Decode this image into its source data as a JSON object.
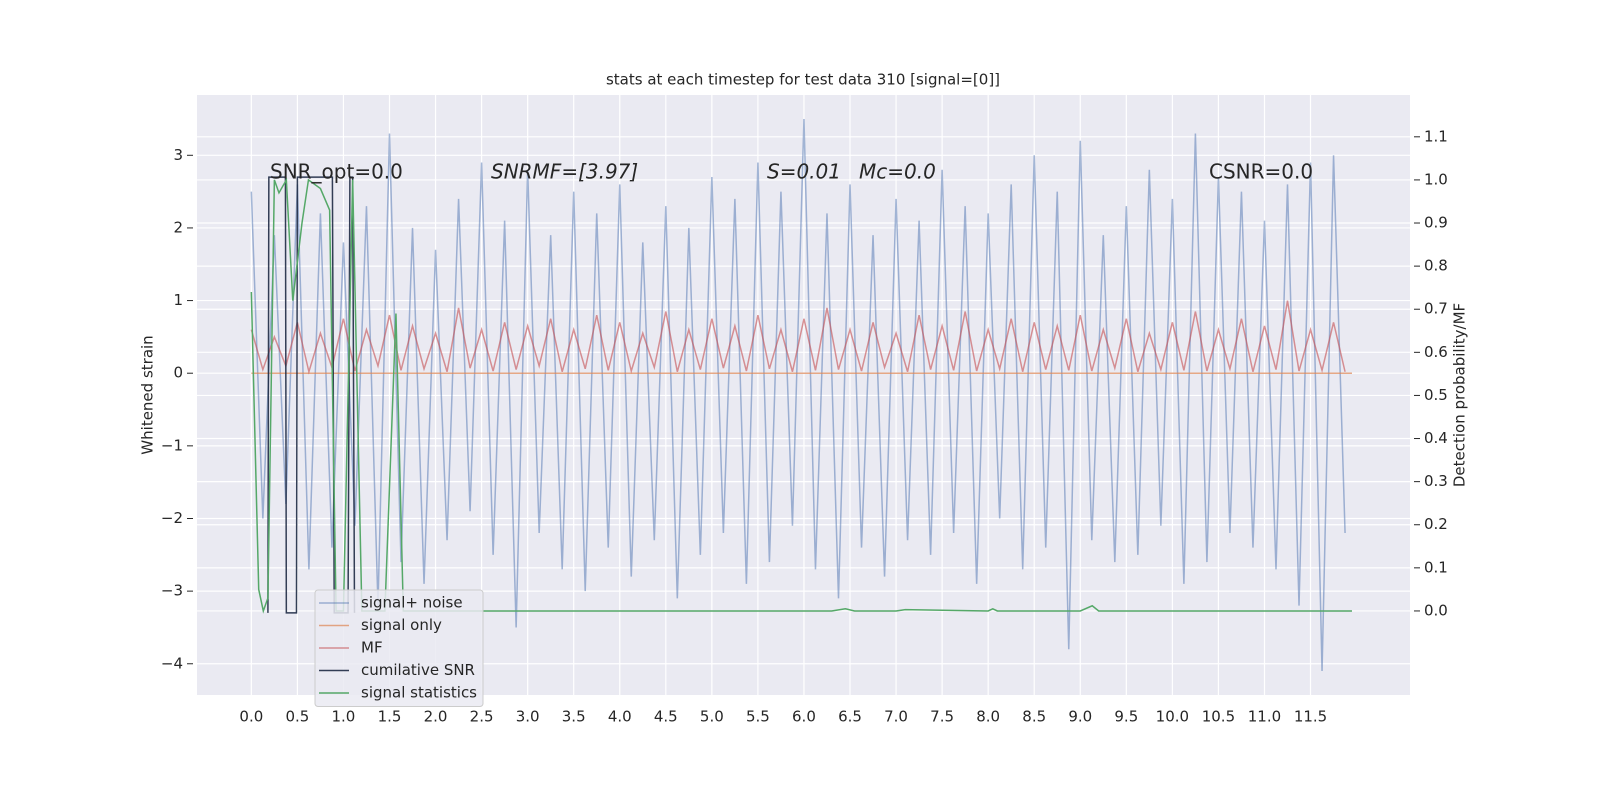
{
  "chart_data": {
    "type": "line",
    "title": "stats at each timestep for test data 310 [signal=[0]]",
    "ylabel": "Whitened strain",
    "y2label": "Detection probability/MF",
    "grid": true,
    "legend": "lower left",
    "annotations": [
      "SNR_opt=0.0",
      "SNRMF=[3.97]",
      "S=0.01",
      "Mc=0.0",
      "CSNR=0.0"
    ],
    "xlim": [
      -0.59,
      12.58
    ],
    "ylim": [
      -4.43,
      3.83
    ],
    "y2lim": [
      -0.195,
      1.197
    ],
    "xticks": [
      {
        "value": 0,
        "label": "0.0"
      },
      {
        "value": 0.5,
        "label": "0.5"
      },
      {
        "value": 1,
        "label": "1.0"
      },
      {
        "value": 1.5,
        "label": "1.5"
      },
      {
        "value": 2,
        "label": "2.0"
      },
      {
        "value": 2.5,
        "label": "2.5"
      },
      {
        "value": 3,
        "label": "3.0"
      },
      {
        "value": 3.5,
        "label": "3.5"
      },
      {
        "value": 4,
        "label": "4.0"
      },
      {
        "value": 4.5,
        "label": "4.5"
      },
      {
        "value": 5,
        "label": "5.0"
      },
      {
        "value": 5.5,
        "label": "5.5"
      },
      {
        "value": 6,
        "label": "6.0"
      },
      {
        "value": 6.5,
        "label": "6.5"
      },
      {
        "value": 7,
        "label": "7.0"
      },
      {
        "value": 7.5,
        "label": "7.5"
      },
      {
        "value": 8,
        "label": "8.0"
      },
      {
        "value": 8.5,
        "label": "8.5"
      },
      {
        "value": 9,
        "label": "9.0"
      },
      {
        "value": 9.5,
        "label": "9.5"
      },
      {
        "value": 10,
        "label": "10.0"
      },
      {
        "value": 10.5,
        "label": "10.5"
      },
      {
        "value": 11,
        "label": "11.0"
      },
      {
        "value": 11.5,
        "label": "11.5"
      }
    ],
    "yticks": [
      {
        "value": -4,
        "label": "−4"
      },
      {
        "value": -3,
        "label": "−3"
      },
      {
        "value": -2,
        "label": "−2"
      },
      {
        "value": -1,
        "label": "−1"
      },
      0,
      1,
      2,
      3
    ],
    "y2ticks": [
      {
        "value": 0,
        "label": "0.0"
      },
      {
        "value": 0.1,
        "label": "0.1"
      },
      {
        "value": 0.2,
        "label": "0.2"
      },
      {
        "value": 0.3,
        "label": "0.3"
      },
      {
        "value": 0.4,
        "label": "0.4"
      },
      {
        "value": 0.5,
        "label": "0.5"
      },
      {
        "value": 0.6,
        "label": "0.6"
      },
      {
        "value": 0.7,
        "label": "0.7"
      },
      {
        "value": 0.8,
        "label": "0.8"
      },
      {
        "value": 0.9,
        "label": "0.9"
      },
      {
        "value": 1.0,
        "label": "1.0"
      },
      {
        "value": 1.1,
        "label": "1.1"
      }
    ],
    "x": [
      0,
      0.125,
      0.25,
      0.375,
      0.5,
      0.625,
      0.75,
      0.875,
      1,
      1.125,
      1.25,
      1.375,
      1.5,
      1.625,
      1.75,
      1.875,
      2,
      2.125,
      2.25,
      2.375,
      2.5,
      2.625,
      2.75,
      2.875,
      3,
      3.125,
      3.25,
      3.375,
      3.5,
      3.625,
      3.75,
      3.875,
      4,
      4.125,
      4.25,
      4.375,
      4.5,
      4.625,
      4.75,
      4.875,
      5,
      5.125,
      5.25,
      5.375,
      5.5,
      5.625,
      5.75,
      5.875,
      6,
      6.125,
      6.25,
      6.375,
      6.5,
      6.625,
      6.75,
      6.875,
      7,
      7.125,
      7.25,
      7.375,
      7.5,
      7.625,
      7.75,
      7.875,
      8,
      8.125,
      8.25,
      8.375,
      8.5,
      8.625,
      8.75,
      8.875,
      9,
      9.125,
      9.25,
      9.375,
      9.5,
      9.625,
      9.75,
      9.875,
      10,
      10.125,
      10.25,
      10.375,
      10.5,
      10.625,
      10.75,
      10.875,
      11,
      11.125,
      11.25,
      11.375,
      11.5,
      11.625,
      11.75,
      11.875
    ],
    "series": [
      {
        "name": "signal+ noise",
        "color": "#4c72b0",
        "axis": "y",
        "values": [
          2.5,
          -2.0,
          1.9,
          -1.8,
          2.6,
          -2.7,
          2.2,
          -2.4,
          1.8,
          -2.1,
          2.3,
          -3.2,
          3.3,
          -2.6,
          2.0,
          -2.9,
          1.7,
          -2.3,
          2.4,
          -1.9,
          2.9,
          -2.5,
          2.1,
          -3.5,
          2.8,
          -2.2,
          1.9,
          -2.7,
          2.5,
          -3.0,
          2.2,
          -2.4,
          2.6,
          -2.8,
          1.8,
          -2.3,
          2.3,
          -3.1,
          2.0,
          -2.5,
          2.7,
          -2.2,
          2.4,
          -2.9,
          2.9,
          -2.6,
          2.5,
          -2.1,
          3.5,
          -2.7,
          2.2,
          -3.1,
          2.6,
          -2.4,
          1.9,
          -2.8,
          2.4,
          -2.3,
          2.1,
          -2.5,
          2.8,
          -2.2,
          2.3,
          -2.9,
          2.2,
          -2.0,
          2.6,
          -2.7,
          3.0,
          -2.4,
          2.5,
          -3.8,
          3.2,
          -2.3,
          1.9,
          -2.6,
          2.3,
          -2.5,
          2.8,
          -2.1,
          2.4,
          -2.9,
          3.3,
          -2.6,
          2.7,
          -2.2,
          2.5,
          -2.4,
          2.1,
          -2.7,
          2.6,
          -3.2,
          2.9,
          -4.1,
          3.0,
          -2.2
        ]
      },
      {
        "name": "signal only",
        "color": "#dd8452",
        "axis": "y",
        "x": [
          0,
          11.95
        ],
        "values": [
          0,
          0
        ]
      },
      {
        "name": "MF",
        "color": "#c44e52",
        "axis": "y",
        "values": [
          0.6,
          0.05,
          0.5,
          0.1,
          0.7,
          0.02,
          0.55,
          0.08,
          0.75,
          0.03,
          0.6,
          0.1,
          0.8,
          0.04,
          0.65,
          0.06,
          0.55,
          0.02,
          0.9,
          0.07,
          0.6,
          0.03,
          0.7,
          0.05,
          0.65,
          0.1,
          0.75,
          0.02,
          0.6,
          0.06,
          0.8,
          0.04,
          0.7,
          0.03,
          0.55,
          0.08,
          0.85,
          0.02,
          0.6,
          0.05,
          0.75,
          0.07,
          0.65,
          0.03,
          0.8,
          0.06,
          0.6,
          0.02,
          0.75,
          0.04,
          0.9,
          0.05,
          0.6,
          0.03,
          0.7,
          0.08,
          0.55,
          0.02,
          0.8,
          0.05,
          0.65,
          0.04,
          0.85,
          0.03,
          0.6,
          0.06,
          0.75,
          0.02,
          0.7,
          0.05,
          0.65,
          0.04,
          0.8,
          0.03,
          0.6,
          0.07,
          0.75,
          0.02,
          0.55,
          0.05,
          0.7,
          0.04,
          0.85,
          0.03,
          0.6,
          0.06,
          0.75,
          0.02,
          0.65,
          0.05,
          1.0,
          0.03,
          0.6,
          0.04,
          0.7,
          0.02
        ]
      },
      {
        "name": "cumilative SNR",
        "color": "#1e2a44",
        "axis": "y",
        "x": [
          0.18,
          0.19,
          0.37,
          0.38,
          0.49,
          0.5,
          0.88,
          0.9,
          1.05,
          1.07,
          1.1,
          1.12
        ],
        "values": [
          -3.3,
          2.7,
          2.7,
          -3.3,
          -3.3,
          2.7,
          2.7,
          -3.3,
          -3.3,
          2.7,
          2.7,
          -3.3
        ]
      },
      {
        "name": "signal statistics",
        "color": "#55a868",
        "axis": "y2",
        "x": [
          0,
          0.08,
          0.13,
          0.18,
          0.25,
          0.3,
          0.38,
          0.45,
          0.55,
          0.62,
          0.75,
          0.85,
          0.92,
          1.0,
          1.1,
          1.2,
          1.45,
          1.57,
          1.65,
          6.3,
          6.45,
          6.55,
          7.0,
          7.1,
          8.0,
          8.05,
          8.1,
          9.0,
          9.13,
          9.2,
          11.95
        ],
        "values": [
          0.74,
          0.05,
          0.0,
          0.03,
          1.0,
          0.97,
          1.0,
          0.72,
          0.9,
          1.0,
          0.98,
          0.93,
          0.0,
          0.0,
          1.0,
          0.0,
          0.0,
          0.69,
          0.0,
          0.0,
          0.005,
          0.0,
          0.0,
          0.003,
          0.0,
          0.005,
          0.0,
          0.0,
          0.012,
          0.0,
          0.0
        ]
      }
    ]
  }
}
